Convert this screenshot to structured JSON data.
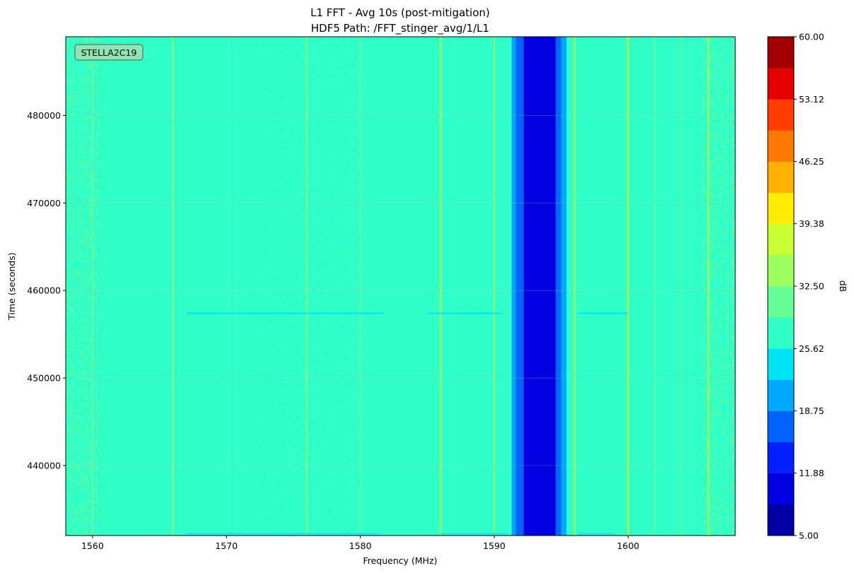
{
  "chart_data": {
    "type": "heatmap",
    "title_line1": "L1 FFT - Avg 10s (post-mitigation)",
    "title_line2": "HDF5 Path: /FFT_stinger_avg/1/L1",
    "xlabel": "Frequency (MHz)",
    "ylabel": "Time (seconds)",
    "colorbar_label": "dB",
    "annotation": "STELLA2C19",
    "xlim": [
      1558,
      1608
    ],
    "ylim": [
      432000,
      489000
    ],
    "x_ticks": [
      1560,
      1570,
      1580,
      1590,
      1600
    ],
    "x_tick_labels": [
      "1560",
      "1570",
      "1580",
      "1590",
      "1600"
    ],
    "y_ticks": [
      440000,
      450000,
      460000,
      470000,
      480000
    ],
    "y_tick_labels": [
      "440000",
      "450000",
      "460000",
      "470000",
      "480000"
    ],
    "grid": true,
    "colorbar": {
      "vmin": 5.0,
      "vmax": 60.0,
      "levels": 16,
      "tick_values": [
        5.0,
        11.88,
        18.75,
        25.62,
        32.5,
        39.38,
        46.25,
        53.12,
        60.0
      ],
      "tick_labels": [
        "5.00",
        "11.88",
        "18.75",
        "25.62",
        "32.50",
        "39.38",
        "46.25",
        "53.12",
        "60.00"
      ],
      "colors": [
        "#0000a4",
        "#0000e0",
        "#0020ff",
        "#0064ff",
        "#00a8ff",
        "#00e4f8",
        "#30ffc8",
        "#64ff94",
        "#9cff60",
        "#c8ff30",
        "#ffec00",
        "#ffb000",
        "#ff7800",
        "#ff3c00",
        "#e40000",
        "#a00000"
      ]
    },
    "background_db": 28.5,
    "frequency_bands": [
      {
        "from": 1591.3,
        "to": 1591.6,
        "db": 19.5
      },
      {
        "from": 1591.6,
        "to": 1592.2,
        "db": 16.5
      },
      {
        "from": 1592.2,
        "to": 1594.6,
        "db": 10.0
      },
      {
        "from": 1594.6,
        "to": 1595.0,
        "db": 16.5
      },
      {
        "from": 1595.0,
        "to": 1595.4,
        "db": 19.5
      }
    ],
    "spectral_lines": [
      {
        "freq": 1560.0,
        "db": 31.5
      },
      {
        "freq": 1566.0,
        "db": 33.0
      },
      {
        "freq": 1576.0,
        "db": 34.5
      },
      {
        "freq": 1580.0,
        "db": 32.0
      },
      {
        "freq": 1586.0,
        "db": 38.0
      },
      {
        "freq": 1590.0,
        "db": 33.0
      },
      {
        "freq": 1596.0,
        "db": 36.0
      },
      {
        "freq": 1600.0,
        "db": 40.0
      },
      {
        "freq": 1602.0,
        "db": 31.5
      },
      {
        "freq": 1604.0,
        "db": 32.0
      },
      {
        "freq": 1606.0,
        "db": 36.0
      }
    ],
    "events": [
      {
        "time": 457400,
        "from": 1567.0,
        "to": 1581.8,
        "db": 24.0
      },
      {
        "time": 457400,
        "from": 1585.0,
        "to": 1590.6,
        "db": 24.0
      },
      {
        "time": 457400,
        "from": 1596.3,
        "to": 1600.0,
        "db": 24.0
      },
      {
        "time": 432200,
        "from": 1567.0,
        "to": 1581.5,
        "db": 24.0
      },
      {
        "time": 432200,
        "from": 1586.0,
        "to": 1591.0,
        "db": 24.0
      },
      {
        "time": 432200,
        "from": 1596.3,
        "to": 1598.9,
        "db": 24.0
      }
    ],
    "speckle_regions": [
      {
        "from": 1558.0,
        "to": 1560.5,
        "db": 33.0,
        "density": 0.3
      },
      {
        "from": 1605.5,
        "to": 1608.0,
        "db": 33.0,
        "density": 0.3
      },
      {
        "from": 1572.5,
        "to": 1580.0,
        "db": 24.0,
        "density": 0.04
      }
    ]
  }
}
